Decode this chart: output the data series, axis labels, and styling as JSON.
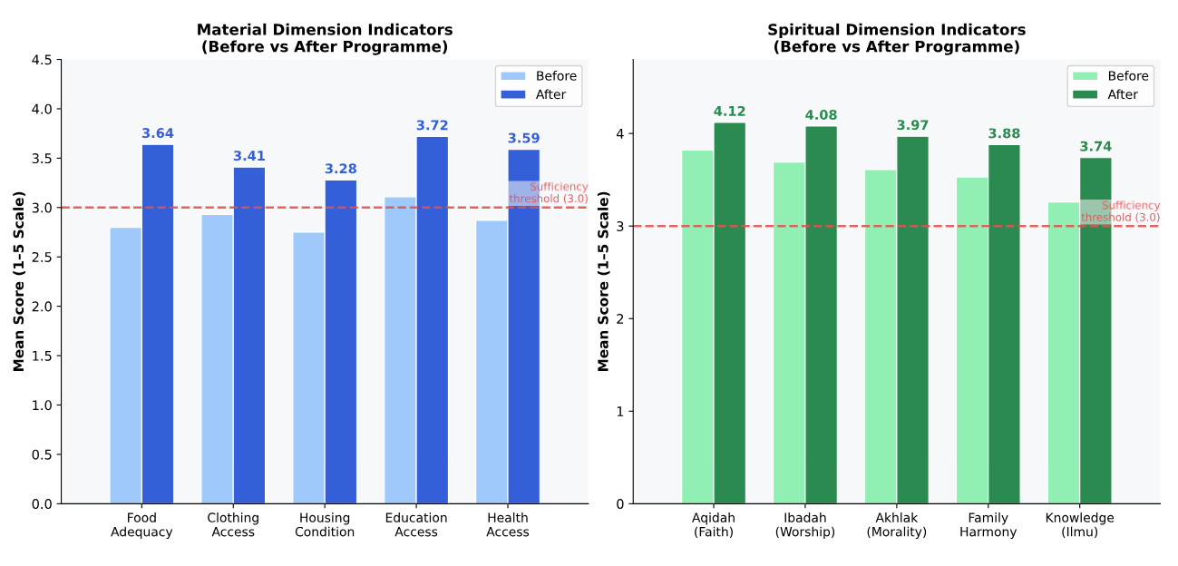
{
  "chart_data": [
    {
      "type": "bar",
      "title": "Material Dimension Indicators\n(Before vs After Programme)",
      "ylabel": "Mean Score (1–5 Scale)",
      "categories": [
        "Food\nAdequacy",
        "Clothing\nAccess",
        "Housing\nCondition",
        "Education\nAccess",
        "Health\nAccess"
      ],
      "series": [
        {
          "name": "Before",
          "color": "#9ec9fa",
          "values": [
            2.8,
            2.93,
            2.75,
            3.11,
            2.87
          ]
        },
        {
          "name": "After",
          "color": "#345fd8",
          "values": [
            3.64,
            3.41,
            3.28,
            3.72,
            3.59
          ],
          "value_labels": [
            "3.64",
            "3.41",
            "3.28",
            "3.72",
            "3.59"
          ]
        }
      ],
      "ylim": [
        0,
        4.5
      ],
      "yticks": [
        {
          "value": 0,
          "label": "0.0"
        },
        {
          "value": 0.5,
          "label": "0.5"
        },
        {
          "value": 1,
          "label": "1.0"
        },
        {
          "value": 1.5,
          "label": "1.5"
        },
        {
          "value": 2,
          "label": "2.0"
        },
        {
          "value": 2.5,
          "label": "2.5"
        },
        {
          "value": 3,
          "label": "3.0"
        },
        {
          "value": 3.5,
          "label": "3.5"
        },
        {
          "value": 4,
          "label": "4.0"
        },
        {
          "value": 4.5,
          "label": "4.5"
        }
      ],
      "ref_lines": [
        {
          "axis": "y",
          "value": 3.0,
          "label": "Sufficiency\nthreshold (3.0)",
          "color": "#e05252",
          "line_style": "dashed"
        }
      ],
      "legend": "top right",
      "grid": false
    },
    {
      "type": "bar",
      "title": "Spiritual Dimension Indicators\n(Before vs After Programme)",
      "ylabel": "Mean Score (1–5 Scale)",
      "categories": [
        "Aqidah\n(Faith)",
        "Ibadah\n(Worship)",
        "Akhlak\n(Morality)",
        "Family\nHarmony",
        "Knowledge\n(Ilmu)"
      ],
      "series": [
        {
          "name": "Before",
          "color": "#92efb3",
          "values": [
            3.82,
            3.69,
            3.61,
            3.53,
            3.26
          ]
        },
        {
          "name": "After",
          "color": "#2a8a4f",
          "values": [
            4.12,
            4.08,
            3.97,
            3.88,
            3.74
          ],
          "value_labels": [
            "4.12",
            "4.08",
            "3.97",
            "3.88",
            "3.74"
          ]
        }
      ],
      "ylim": [
        0,
        4.8
      ],
      "yticks": [
        0,
        1,
        2,
        3,
        4
      ],
      "ref_lines": [
        {
          "axis": "y",
          "value": 3.0,
          "label": "Sufficiency\nthreshold (3.0)",
          "color": "#e05252",
          "line_style": "dashed"
        }
      ],
      "legend": "top right",
      "grid": false
    }
  ]
}
